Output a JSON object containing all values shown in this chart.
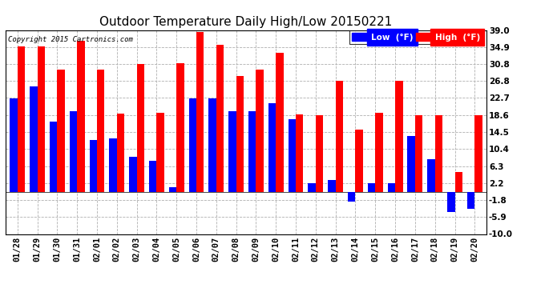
{
  "title": "Outdoor Temperature Daily High/Low 20150221",
  "copyright": "Copyright 2015 Cartronics.com",
  "legend_low": "Low  (°F)",
  "legend_high": "High  (°F)",
  "dates": [
    "01/28",
    "01/29",
    "01/30",
    "01/31",
    "02/01",
    "02/02",
    "02/03",
    "02/04",
    "02/05",
    "02/06",
    "02/07",
    "02/08",
    "02/09",
    "02/10",
    "02/11",
    "02/12",
    "02/13",
    "02/14",
    "02/15",
    "02/16",
    "02/17",
    "02/18",
    "02/19",
    "02/20"
  ],
  "high": [
    35.0,
    35.0,
    29.5,
    36.5,
    29.5,
    19.0,
    30.8,
    19.2,
    31.0,
    38.5,
    35.5,
    28.0,
    29.5,
    33.5,
    18.8,
    18.6,
    26.8,
    15.0,
    19.2,
    26.8,
    18.6,
    18.6,
    4.8,
    18.6
  ],
  "low": [
    22.5,
    25.5,
    17.0,
    19.5,
    12.5,
    13.0,
    8.5,
    7.5,
    1.2,
    22.5,
    22.5,
    19.5,
    19.5,
    21.5,
    17.5,
    2.2,
    3.0,
    -2.2,
    2.2,
    2.2,
    13.5,
    8.0,
    -4.8,
    -4.0
  ],
  "ylim": [
    -10.0,
    39.0
  ],
  "yticks": [
    -10.0,
    -5.9,
    -1.8,
    2.2,
    6.3,
    10.4,
    14.5,
    18.6,
    22.7,
    26.8,
    30.8,
    34.9,
    39.0
  ],
  "bar_width": 0.38,
  "low_color": "#0000ff",
  "high_color": "#ff0000",
  "bg_color": "#ffffff",
  "grid_color": "#b0b0b0",
  "title_fontsize": 11,
  "axis_fontsize": 7.5
}
